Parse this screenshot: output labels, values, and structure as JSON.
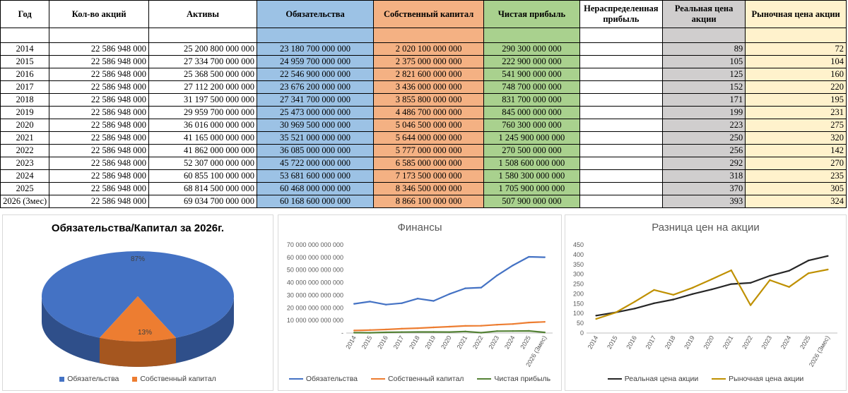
{
  "table": {
    "headers": [
      "Год",
      "Кол-во акций",
      "Активы",
      "Обязательства",
      "Собственный капитал",
      "Чистая прибыль",
      "Нераспределенная прибыль",
      "Реальная цена акции",
      "Рыночная цена акции"
    ],
    "rows": [
      [
        "2014",
        "22 586 948 000",
        "25 200 800 000 000",
        "23 180 700 000 000",
        "2 020 100 000 000",
        "290 300 000 000",
        "",
        "89",
        "72"
      ],
      [
        "2015",
        "22 586 948 000",
        "27 334 700 000 000",
        "24 959 700 000 000",
        "2 375 000 000 000",
        "222 900 000 000",
        "",
        "105",
        "104"
      ],
      [
        "2016",
        "22 586 948 000",
        "25 368 500 000 000",
        "22 546 900 000 000",
        "2 821 600 000 000",
        "541 900 000 000",
        "",
        "125",
        "160"
      ],
      [
        "2017",
        "22 586 948 000",
        "27 112 200 000 000",
        "23 676 200 000 000",
        "3 436 000 000 000",
        "748 700 000 000",
        "",
        "152",
        "220"
      ],
      [
        "2018",
        "22 586 948 000",
        "31 197 500 000 000",
        "27 341 700 000 000",
        "3 855 800 000 000",
        "831 700 000 000",
        "",
        "171",
        "195"
      ],
      [
        "2019",
        "22 586 948 000",
        "29 959 700 000 000",
        "25 473 000 000 000",
        "4 486 700 000 000",
        "845 000 000 000",
        "",
        "199",
        "231"
      ],
      [
        "2020",
        "22 586 948 000",
        "36 016 000 000 000",
        "30 969 500 000 000",
        "5 046 500 000 000",
        "760 300 000 000",
        "",
        "223",
        "275"
      ],
      [
        "2021",
        "22 586 948 000",
        "41 165 000 000 000",
        "35 521 000 000 000",
        "5 644 000 000 000",
        "1 245 900 000 000",
        "",
        "250",
        "320"
      ],
      [
        "2022",
        "22 586 948 000",
        "41 862 000 000 000",
        "36 085 000 000 000",
        "5 777 000 000 000",
        "270 500 000 000",
        "",
        "256",
        "142"
      ],
      [
        "2023",
        "22 586 948 000",
        "52 307 000 000 000",
        "45 722 000 000 000",
        "6 585 000 000 000",
        "1 508 600 000 000",
        "",
        "292",
        "270"
      ],
      [
        "2024",
        "22 586 948 000",
        "60 855 100 000 000",
        "53 681 600 000 000",
        "7 173 500 000 000",
        "1 580 300 000 000",
        "",
        "318",
        "235"
      ],
      [
        "2025",
        "22 586 948 000",
        "68 814 500 000 000",
        "60 468 000 000 000",
        "8 346 500 000 000",
        "1 705 900 000 000",
        "",
        "370",
        "305"
      ],
      [
        "2026 (3мес)",
        "22 586 948 000",
        "69 034 700 000 000",
        "60 168 600 000 000",
        "8 866 100 000 000",
        "507 900 000 000",
        "",
        "393",
        "324"
      ]
    ]
  },
  "colors": {
    "blue": "#4472c4",
    "orange": "#ed7d31",
    "green": "#548235",
    "dark": "#262626",
    "gold": "#bf9000",
    "pie_title": "#1f3864"
  },
  "chart_data": [
    {
      "type": "pie",
      "title": "Обязательства/Капитал за 2026г.",
      "categories": [
        "Обязательства",
        "Собственный капитал"
      ],
      "values": [
        87,
        13
      ],
      "labels": [
        "87%",
        "13%"
      ],
      "legend": "bottom"
    },
    {
      "type": "line",
      "title": "Финансы",
      "categories": [
        "2014",
        "2015",
        "2016",
        "2017",
        "2018",
        "2019",
        "2020",
        "2021",
        "2022",
        "2023",
        "2024",
        "2025",
        "2026 (3мес)"
      ],
      "series": [
        {
          "name": "Обязательства",
          "values": [
            23180700000000,
            24959700000000,
            22546900000000,
            23676200000000,
            27341700000000,
            25473000000000,
            30969500000000,
            35521000000000,
            36085000000000,
            45722000000000,
            53681600000000,
            60468000000000,
            60168600000000
          ]
        },
        {
          "name": "Собственный капитал",
          "values": [
            2020100000000,
            2375000000000,
            2821600000000,
            3436000000000,
            3855800000000,
            4486700000000,
            5046500000000,
            5644000000000,
            5777000000000,
            6585000000000,
            7173500000000,
            8346500000000,
            8866100000000
          ]
        },
        {
          "name": "Чистая прибыль",
          "values": [
            290300000000,
            222900000000,
            541900000000,
            748700000000,
            831700000000,
            845000000000,
            760300000000,
            1245900000000,
            270500000000,
            1508600000000,
            1580300000000,
            1705900000000,
            507900000000
          ]
        }
      ],
      "ylim": [
        0,
        70000000000000
      ],
      "ytick_labels": [
        "-",
        "10 000 000 000 000",
        "20 000 000 000 000",
        "30 000 000 000 000",
        "40 000 000 000 000",
        "50 000 000 000 000",
        "60 000 000 000 000",
        "70 000 000 000 000"
      ],
      "grid": false,
      "legend": "bottom"
    },
    {
      "type": "line",
      "title": "Разница цен на акции",
      "categories": [
        "2014",
        "2015",
        "2016",
        "2017",
        "2018",
        "2019",
        "2020",
        "2021",
        "2022",
        "2023",
        "2024",
        "2025",
        "2026 (3мес)"
      ],
      "series": [
        {
          "name": "Реальная цена акции",
          "values": [
            89,
            105,
            125,
            152,
            171,
            199,
            223,
            250,
            256,
            292,
            318,
            370,
            393
          ]
        },
        {
          "name": "Рыночная цена акции",
          "values": [
            72,
            104,
            160,
            220,
            195,
            231,
            275,
            320,
            142,
            270,
            235,
            305,
            324
          ]
        }
      ],
      "ylim": [
        0,
        450
      ],
      "ytick_labels": [
        "0",
        "50",
        "100",
        "150",
        "200",
        "250",
        "300",
        "350",
        "400",
        "450"
      ],
      "grid": false,
      "legend": "bottom"
    }
  ]
}
